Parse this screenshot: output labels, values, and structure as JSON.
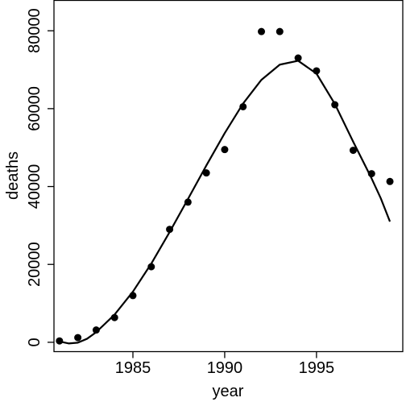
{
  "chart_data": {
    "type": "scatter",
    "title": "",
    "xlabel": "year",
    "ylabel": "deaths",
    "xlim": [
      1980.7,
      1999.7
    ],
    "ylim": [
      -2400,
      87800
    ],
    "x_ticks": [
      1985,
      1990,
      1995
    ],
    "y_ticks": [
      0,
      20000,
      40000,
      60000,
      80000
    ],
    "grid": false,
    "series": [
      {
        "type": "scatter",
        "points": [
          {
            "x": 1981,
            "y": 350
          },
          {
            "x": 1982,
            "y": 1200
          },
          {
            "x": 1983,
            "y": 3150
          },
          {
            "x": 1984,
            "y": 6350
          },
          {
            "x": 1985,
            "y": 12000
          },
          {
            "x": 1986,
            "y": 19400
          },
          {
            "x": 1987,
            "y": 29000
          },
          {
            "x": 1988,
            "y": 36000
          },
          {
            "x": 1989,
            "y": 43500
          },
          {
            "x": 1990,
            "y": 49500
          },
          {
            "x": 1991,
            "y": 60500
          },
          {
            "x": 1992,
            "y": 79800
          },
          {
            "x": 1993,
            "y": 79800
          },
          {
            "x": 1994,
            "y": 73000
          },
          {
            "x": 1995,
            "y": 69700
          },
          {
            "x": 1996,
            "y": 61000
          },
          {
            "x": 1997,
            "y": 49300
          },
          {
            "x": 1998,
            "y": 43300
          },
          {
            "x": 1999,
            "y": 41300
          }
        ]
      },
      {
        "type": "line",
        "points": [
          {
            "x": 1981,
            "y": 200
          },
          {
            "x": 1981.5,
            "y": -300
          },
          {
            "x": 1982,
            "y": -100
          },
          {
            "x": 1982.5,
            "y": 900
          },
          {
            "x": 1983,
            "y": 2600
          },
          {
            "x": 1984,
            "y": 7100
          },
          {
            "x": 1985,
            "y": 13000
          },
          {
            "x": 1986,
            "y": 20200
          },
          {
            "x": 1987,
            "y": 28300
          },
          {
            "x": 1988,
            "y": 36800
          },
          {
            "x": 1989,
            "y": 45400
          },
          {
            "x": 1990,
            "y": 53700
          },
          {
            "x": 1991,
            "y": 61300
          },
          {
            "x": 1992,
            "y": 67400
          },
          {
            "x": 1993,
            "y": 71300
          },
          {
            "x": 1994,
            "y": 72300
          },
          {
            "x": 1995,
            "y": 69000
          },
          {
            "x": 1996,
            "y": 61200
          },
          {
            "x": 1997,
            "y": 51500
          },
          {
            "x": 1998,
            "y": 42100
          },
          {
            "x": 1998.5,
            "y": 37000
          },
          {
            "x": 1999,
            "y": 31000
          }
        ]
      }
    ]
  }
}
